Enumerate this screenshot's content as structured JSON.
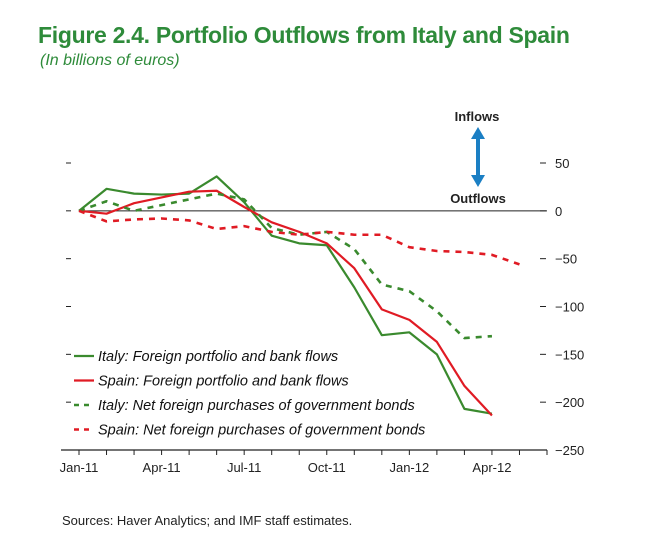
{
  "title": "Figure 2.4. Portfolio Outflows from Italy and Spain",
  "subtitle": "(In billions of euros)",
  "source": "Sources: Haver Analytics; and IMF staff estimates.",
  "colors": {
    "title": "#2e8b3a",
    "italy": "#3a8a2e",
    "spain": "#e01b24",
    "arrow": "#1b7fc4",
    "axis": "#222222"
  },
  "chart_data": {
    "type": "line",
    "x_labels": [
      "Jan-11",
      "Feb-11",
      "Mar-11",
      "Apr-11",
      "May-11",
      "Jun-11",
      "Jul-11",
      "Aug-11",
      "Sep-11",
      "Oct-11",
      "Nov-11",
      "Dec-11",
      "Jan-12",
      "Feb-12",
      "Mar-12",
      "Apr-12",
      "May-12"
    ],
    "x_tick_labels": [
      "Jan-11",
      "Apr-11",
      "Jul-11",
      "Oct-11",
      "Jan-12",
      "Apr-12"
    ],
    "ylim": [
      -250,
      50
    ],
    "y_ticks": [
      50,
      0,
      -50,
      -100,
      -150,
      -200,
      -250
    ],
    "y_tick_labels": [
      "50",
      "0",
      "−50",
      "−100",
      "−150",
      "−200",
      "−250"
    ],
    "y_axis_side": "right",
    "zero_line": true,
    "series": [
      {
        "name": "Italy: Foreign portfolio and bank flows",
        "country": "italy",
        "style": "solid",
        "values": [
          0,
          23,
          18,
          17,
          18,
          36,
          9,
          -26,
          -34,
          -36,
          -80,
          -130,
          -127,
          -150,
          -207,
          -212,
          null
        ]
      },
      {
        "name": "Spain: Foreign portfolio and bank flows",
        "country": "spain",
        "style": "solid",
        "values": [
          0,
          -3,
          8,
          14,
          20,
          21,
          4,
          -12,
          -22,
          -34,
          -60,
          -103,
          -114,
          -137,
          -183,
          -214,
          null
        ]
      },
      {
        "name": "Italy: Net foreign purchases of government bonds",
        "country": "italy",
        "style": "dashed",
        "values": [
          0,
          10,
          0,
          6,
          12,
          18,
          12,
          -18,
          -25,
          -22,
          -40,
          -77,
          -84,
          -105,
          -133,
          -131,
          null
        ]
      },
      {
        "name": "Spain: Net foreign purchases of government bonds",
        "country": "spain",
        "style": "dashed",
        "values": [
          0,
          -11,
          -9,
          -8,
          -10,
          -19,
          -16,
          -22,
          -25,
          -22,
          -25,
          -25,
          -38,
          -42,
          -43,
          -46,
          -56
        ]
      }
    ],
    "legend": {
      "placement": "bottom-left"
    },
    "annotation": {
      "inflows": "Inflows",
      "outflows": "Outflows"
    }
  }
}
